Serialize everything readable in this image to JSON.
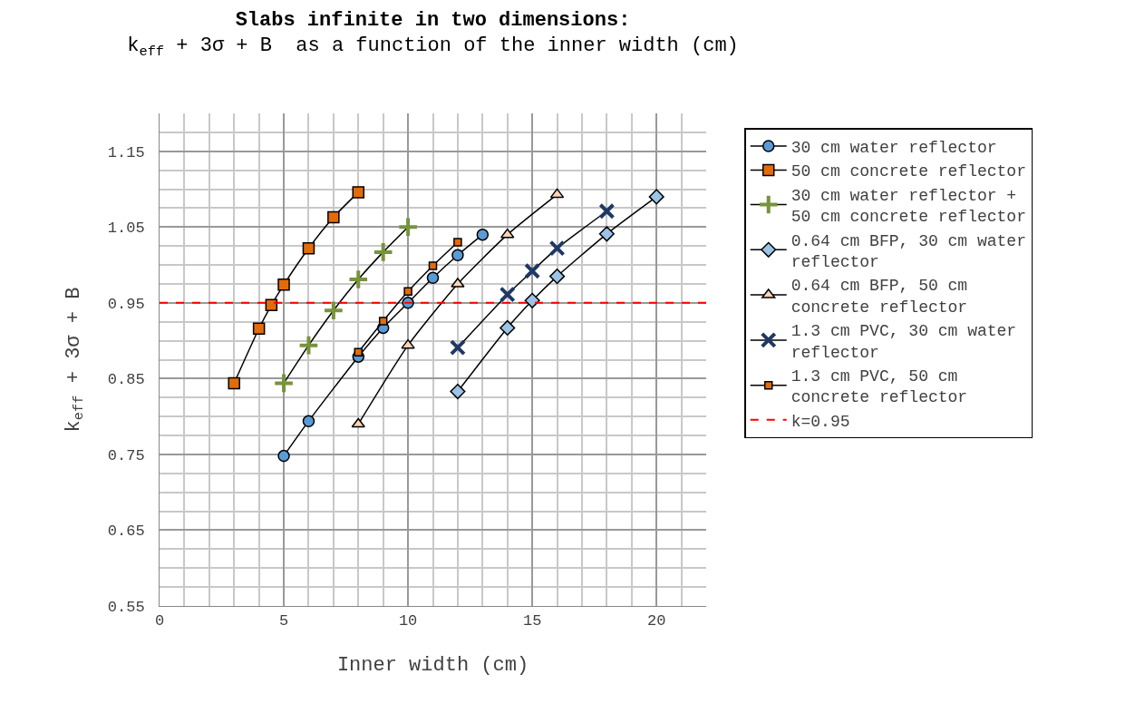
{
  "chart_data": {
    "type": "line",
    "title": "Slabs infinite in two dimensions:",
    "subtitle": "k$_{eff}$ + 3σ + B  as a function of the inner width (cm)",
    "xlabel": "Inner width (cm)",
    "ylabel": "k$_{eff}$ + 3σ + B",
    "xlim": [
      0,
      22
    ],
    "xticks": [
      0,
      5,
      10,
      15,
      20
    ],
    "ylim": [
      0.55,
      1.2
    ],
    "yticks": [
      0.55,
      0.65,
      0.75,
      0.85,
      0.95,
      1.05,
      1.15
    ],
    "grid": true,
    "legend": "right",
    "line_style": "solid",
    "series": [
      {
        "name": "30 cm water reflector",
        "color": "#5b9bd5",
        "marker": "circle",
        "x": [
          5,
          6,
          8,
          9,
          10,
          11,
          12,
          13
        ],
        "values": [
          0.748,
          0.794,
          0.879,
          0.917,
          0.95,
          0.983,
          1.013,
          1.04
        ]
      },
      {
        "name": "50 cm concrete reflector",
        "color": "#e36c0a",
        "marker": "square",
        "x": [
          3,
          4,
          4.5,
          5,
          6,
          7,
          8
        ],
        "values": [
          0.844,
          0.916,
          0.947,
          0.974,
          1.022,
          1.063,
          1.096
        ]
      },
      {
        "name": "30 cm water reflector + 50 cm concrete reflector",
        "color": "#77933c",
        "marker": "cross",
        "x": [
          5,
          6,
          7,
          8,
          9,
          10
        ],
        "values": [
          0.844,
          0.894,
          0.94,
          0.981,
          1.017,
          1.05
        ]
      },
      {
        "name": "0.64 cm BFP, 30 cm water reflector",
        "color": "#9dc3e6",
        "marker": "diamond",
        "x": [
          12,
          14,
          15,
          16,
          18,
          20
        ],
        "values": [
          0.833,
          0.917,
          0.953,
          0.985,
          1.041,
          1.09
        ]
      },
      {
        "name": "0.64 cm BFP, 50 cm concrete reflector",
        "color": "#fbd4b4",
        "marker": "triangle",
        "x": [
          8,
          10,
          12,
          14,
          16
        ],
        "values": [
          0.79,
          0.894,
          0.975,
          1.04,
          1.093
        ]
      },
      {
        "name": "1.3 cm PVC, 30 cm water reflector",
        "color": "#1f3864",
        "marker": "x",
        "x": [
          12,
          14,
          15,
          16,
          18
        ],
        "values": [
          0.891,
          0.961,
          0.992,
          1.022,
          1.071
        ]
      },
      {
        "name": "1.3 cm PVC, 50 cm concrete reflector",
        "color": "#e36c0a",
        "marker": "square",
        "x": [
          8,
          9,
          10,
          11,
          12
        ],
        "values": [
          0.885,
          0.926,
          0.965,
          0.999,
          1.03
        ]
      }
    ],
    "ref_lines": [
      {
        "axis": "y",
        "value": 0.95,
        "label": "k=0.95",
        "color": "#ff0000",
        "line_style": "dashed"
      }
    ]
  }
}
